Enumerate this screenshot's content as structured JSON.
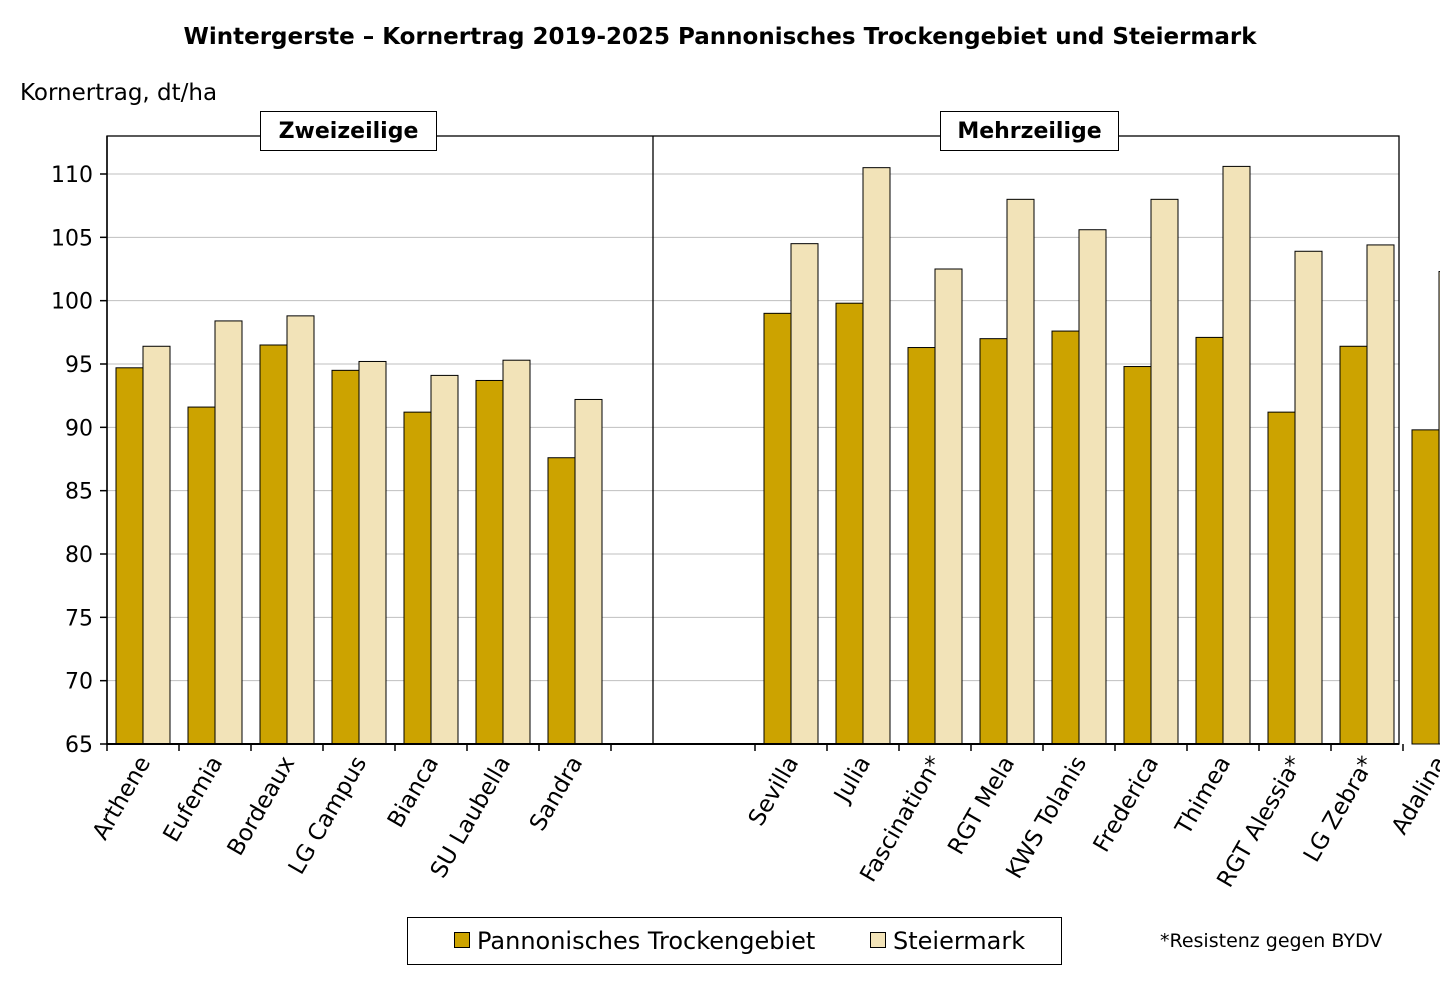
{
  "colors": {
    "series1": "#CCA300",
    "series2": "#F2E3B8",
    "grid": "#BFBFBF"
  },
  "chart_data": {
    "type": "bar",
    "title": "Wintergerste – Kornertrag 2019-2025 Pannonisches Trockengebiet und Steiermark",
    "ylabel": "Kornertrag, dt/ha",
    "xlabel": "",
    "ylim": [
      65,
      113
    ],
    "yticks": [
      65,
      70,
      75,
      80,
      85,
      90,
      95,
      100,
      105,
      110
    ],
    "grid": true,
    "legend_position": "bottom",
    "groups": [
      {
        "label": "Zweizeilige",
        "categories": [
          "Arthene",
          "Eufemia",
          "Bordeaux",
          "LG Campus",
          "Bianca",
          "SU Laubella",
          "Sandra"
        ]
      },
      {
        "label": "Mehrzeilige",
        "categories": [
          "Sevilla",
          "Julia",
          "Fascination*",
          "RGT Mela",
          "KWS Tolanis",
          "Frederica",
          "Thimea",
          "RGT Alessia*",
          "LG Zebra*",
          "Adalina"
        ]
      }
    ],
    "categories": [
      "Arthene",
      "Eufemia",
      "Bordeaux",
      "LG Campus",
      "Bianca",
      "SU Laubella",
      "Sandra",
      "Sevilla",
      "Julia",
      "Fascination*",
      "RGT Mela",
      "KWS Tolanis",
      "Frederica",
      "Thimea",
      "RGT Alessia*",
      "LG Zebra*",
      "Adalina"
    ],
    "series": [
      {
        "name": "Pannonisches Trockengebiet",
        "values": [
          94.7,
          91.6,
          96.5,
          94.5,
          91.2,
          93.7,
          87.6,
          99.0,
          99.8,
          96.3,
          97.0,
          97.6,
          94.8,
          97.1,
          91.2,
          96.4,
          89.8
        ]
      },
      {
        "name": "Steiermark",
        "values": [
          96.4,
          98.4,
          98.8,
          95.2,
          94.1,
          95.3,
          92.2,
          104.5,
          110.5,
          102.5,
          108.0,
          105.6,
          108.0,
          110.6,
          103.9,
          104.4,
          102.3
        ]
      }
    ],
    "footnote": "*Resistenz gegen BYDV"
  }
}
